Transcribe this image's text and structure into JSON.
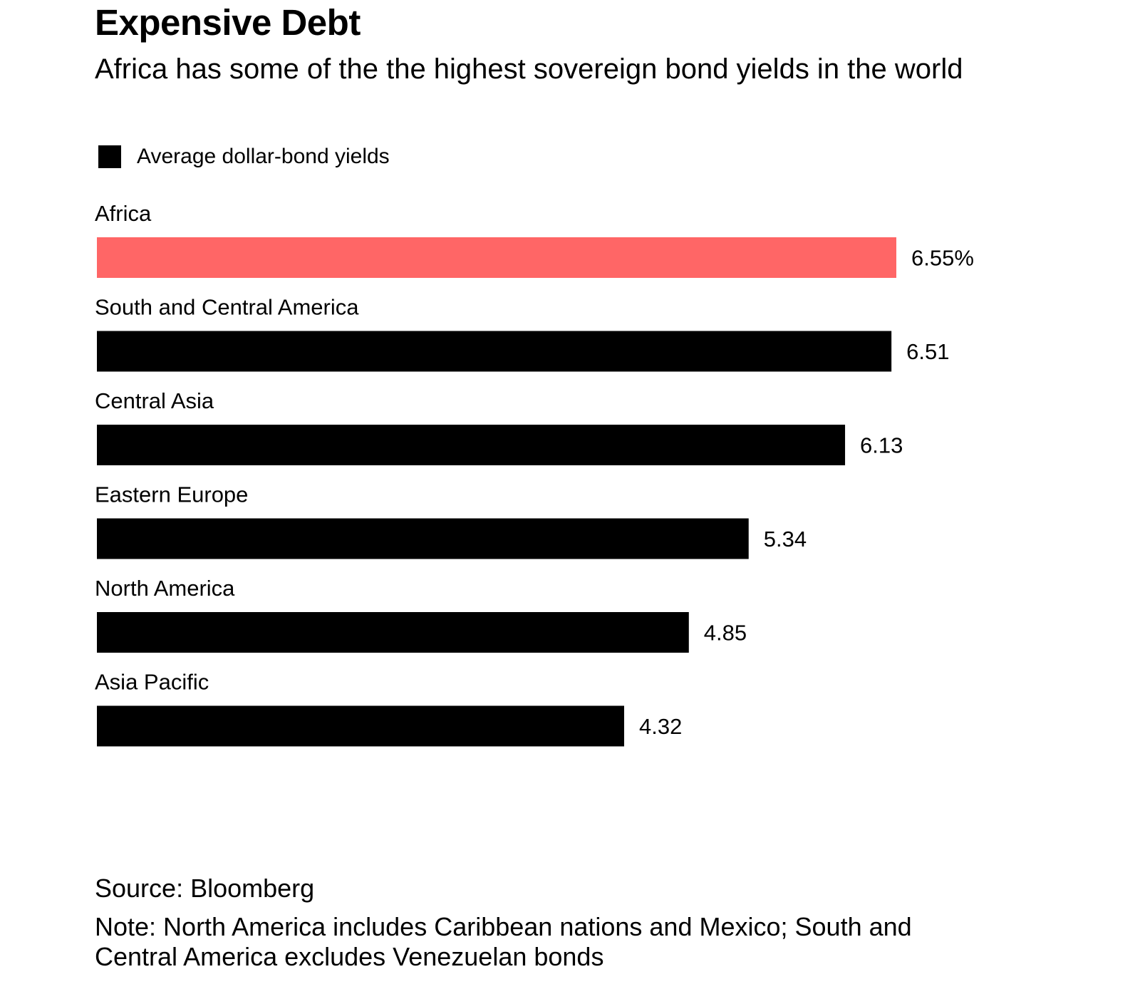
{
  "chart_data": {
    "type": "bar",
    "orientation": "horizontal",
    "title": "Expensive Debt",
    "subtitle": "Africa has some of the the highest sovereign bond yields in the world",
    "legend": {
      "placement": "top-left",
      "entries": [
        {
          "name": "Average dollar-bond yields",
          "color": "#000000"
        }
      ]
    },
    "categories": [
      "Africa",
      "South and Central America",
      "Central Asia",
      "Eastern Europe",
      "North America",
      "Asia Pacific"
    ],
    "series": [
      {
        "name": "Average dollar-bond yields",
        "values": [
          6.55,
          6.51,
          6.13,
          5.34,
          4.85,
          4.32
        ],
        "labels": [
          "6.55%",
          "6.51",
          "6.13",
          "5.34",
          "4.85",
          "4.32"
        ]
      }
    ],
    "highlight": {
      "category": "Africa",
      "color": "#ff6666"
    },
    "bar_color": "#000000",
    "grid": false,
    "xlim": [
      0,
      6.55
    ],
    "source": "Source: Bloomberg",
    "note": "Note: North America includes Caribbean nations and Mexico; South and Central America excludes Venezuelan bonds"
  }
}
